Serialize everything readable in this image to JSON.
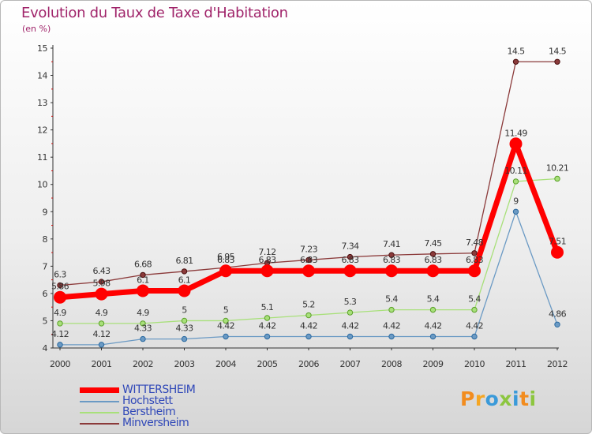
{
  "header": {
    "title": "Evolution du Taux de Taxe d'Habitation",
    "subtitle": "(en %)"
  },
  "brand": {
    "text": "Proxiti",
    "letters": [
      {
        "ch": "P",
        "color": "#f28c1e"
      },
      {
        "ch": "r",
        "color": "#f5a623"
      },
      {
        "ch": "o",
        "color": "#3a9ad9"
      },
      {
        "ch": "x",
        "color": "#8cc63f"
      },
      {
        "ch": "i",
        "color": "#3a9ad9"
      },
      {
        "ch": "t",
        "color": "#f28c1e"
      },
      {
        "ch": "i",
        "color": "#8cc63f"
      }
    ]
  },
  "chart_data": {
    "type": "line",
    "title": "Evolution du Taux de Taxe d'Habitation",
    "ylabel": "(en %)",
    "x": [
      "2000",
      "2001",
      "2002",
      "2003",
      "2004",
      "2005",
      "2006",
      "2007",
      "2008",
      "2009",
      "2010",
      "2011",
      "2012"
    ],
    "ylim": [
      4,
      15
    ],
    "yticks": [
      4,
      5,
      6,
      7,
      8,
      9,
      10,
      11,
      12,
      13,
      14,
      15
    ],
    "grid": false,
    "legend": "bottom-left",
    "series": [
      {
        "name": "WITTERSHEIM",
        "color": "#ff0000",
        "width": 7,
        "marker": 8,
        "markerStroke": "#ff0000",
        "values": [
          5.86,
          5.98,
          6.1,
          6.1,
          6.83,
          6.83,
          6.83,
          6.83,
          6.83,
          6.83,
          6.83,
          11.49,
          7.51
        ],
        "labels": [
          "5.86",
          "5.98",
          "6.1",
          "6.1",
          "6.83",
          "6.83",
          "6.83",
          "6.83",
          "6.83",
          "6.83",
          "6.83",
          "11.49",
          "7.51"
        ]
      },
      {
        "name": "Hochstett",
        "color": "#6b9ac4",
        "width": 1.3,
        "marker": 3.2,
        "markerStroke": "#2b6aa0",
        "values": [
          4.12,
          4.12,
          4.33,
          4.33,
          4.42,
          4.42,
          4.42,
          4.42,
          4.42,
          4.42,
          4.42,
          9,
          4.86
        ],
        "labels": [
          "4.12",
          "4.12",
          "4.33",
          "4.33",
          "4.42",
          "4.42",
          "4.42",
          "4.42",
          "4.42",
          "4.42",
          "4.42",
          "9",
          "4.86"
        ]
      },
      {
        "name": "Berstheim",
        "color": "#a8e07a",
        "width": 1.3,
        "marker": 3.2,
        "markerStroke": "#5aa028",
        "values": [
          4.9,
          4.9,
          4.9,
          5,
          5,
          5.1,
          5.2,
          5.3,
          5.4,
          5.4,
          5.4,
          10.11,
          10.21
        ],
        "labels": [
          "4.9",
          "4.9",
          "4.9",
          "5",
          "5",
          "5.1",
          "5.2",
          "5.3",
          "5.4",
          "5.4",
          "5.4",
          "10.11",
          "10.21"
        ]
      },
      {
        "name": "Minversheim",
        "color": "#8b3a3a",
        "width": 1.3,
        "marker": 3.2,
        "markerStroke": "#4a1010",
        "values": [
          6.3,
          6.43,
          6.68,
          6.81,
          6.95,
          7.12,
          7.23,
          7.34,
          7.41,
          7.45,
          7.48,
          14.5,
          14.5
        ],
        "labels": [
          "6.3",
          "6.43",
          "6.68",
          "6.81",
          "6.95",
          "7.12",
          "7.23",
          "7.34",
          "7.41",
          "7.45",
          "7.48",
          "14.5",
          "14.5"
        ]
      }
    ]
  }
}
